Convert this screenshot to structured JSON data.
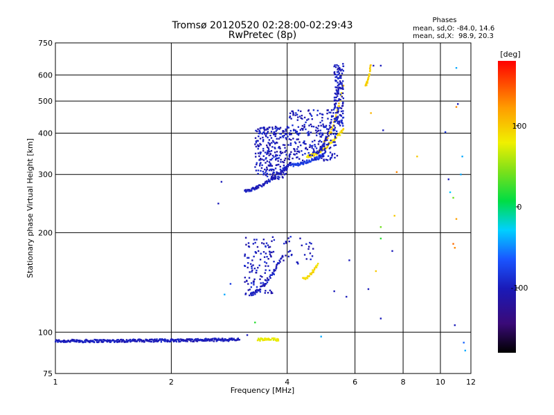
{
  "chart_data": {
    "type": "scatter",
    "title": "Tromsø 20120520 02:28:00-02:29:43",
    "subtitle": "RwPretec (8p)",
    "xlabel": "Frequency [MHz]",
    "ylabel": "Stationary phase Virtual Height [km]",
    "x_scale": "log",
    "y_scale": "log",
    "xlim": [
      1,
      12
    ],
    "ylim": [
      75,
      750
    ],
    "xticks": [
      1,
      2,
      4,
      6,
      8,
      10,
      12
    ],
    "yticks": [
      75,
      100,
      200,
      300,
      400,
      500,
      600,
      750
    ],
    "grid": true,
    "phase_stats": {
      "heading": "Phases",
      "line1": "mean, sd,O: -84.0, 14.6",
      "line2": "mean, sd,X:  98.9, 20.3"
    },
    "colorbar": {
      "label": "[deg]",
      "range": [
        -180,
        180
      ],
      "ticks": [
        100,
        0,
        -100
      ]
    },
    "traces": [
      {
        "x_start": 1.0,
        "x_end": 3.0,
        "y_start": 94,
        "y_end": 95,
        "phase": -100
      },
      {
        "x_start": 3.35,
        "x_end": 3.8,
        "y_start": 95,
        "y_end": 95,
        "phase": 80
      },
      {
        "x_start": 3.1,
        "x_end": 4.1,
        "y_start": 268,
        "y_end": 325,
        "phase": -100
      },
      {
        "x_start": 4.1,
        "x_end": 5.0,
        "y_start": 320,
        "y_end": 345,
        "phase": -80
      },
      {
        "x_start": 4.5,
        "x_end": 5.6,
        "y_start": 340,
        "y_end": 410,
        "phase": 90
      },
      {
        "x_start": 5.0,
        "x_end": 5.6,
        "y_start": 380,
        "y_end": 560,
        "phase": 100
      },
      {
        "x_start": 4.8,
        "x_end": 5.6,
        "y_start": 350,
        "y_end": 650,
        "phase": -100
      },
      {
        "x_start": 6.4,
        "x_end": 6.6,
        "y_start": 560,
        "y_end": 640,
        "phase": 95
      },
      {
        "x_start": 3.2,
        "x_end": 3.9,
        "y_start": 130,
        "y_end": 170,
        "phase": -100
      },
      {
        "x_start": 4.4,
        "x_end": 4.8,
        "y_start": 145,
        "y_end": 160,
        "phase": 90
      }
    ],
    "clusters": [
      {
        "x_min": 3.3,
        "x_max": 4.0,
        "y_min": 290,
        "y_max": 420,
        "count": 260,
        "phase": -100
      },
      {
        "x_min": 4.0,
        "x_max": 5.4,
        "y_min": 330,
        "y_max": 470,
        "count": 260,
        "phase": -100
      },
      {
        "x_min": 3.1,
        "x_max": 3.7,
        "y_min": 130,
        "y_max": 195,
        "count": 110,
        "phase": -100
      },
      {
        "x_min": 3.9,
        "x_max": 4.7,
        "y_min": 160,
        "y_max": 195,
        "count": 30,
        "phase": -100
      },
      {
        "x_min": 5.3,
        "x_max": 5.6,
        "y_min": 420,
        "y_max": 650,
        "count": 120,
        "phase": -100
      }
    ],
    "outliers": [
      {
        "x": 2.65,
        "y": 245,
        "phase": -100
      },
      {
        "x": 2.7,
        "y": 285,
        "phase": -100
      },
      {
        "x": 2.75,
        "y": 130,
        "phase": -40
      },
      {
        "x": 2.85,
        "y": 140,
        "phase": -80
      },
      {
        "x": 3.3,
        "y": 107,
        "phase": 20
      },
      {
        "x": 3.15,
        "y": 98,
        "phase": -100
      },
      {
        "x": 4.9,
        "y": 97,
        "phase": -40
      },
      {
        "x": 5.3,
        "y": 133,
        "phase": -100
      },
      {
        "x": 5.7,
        "y": 128,
        "phase": -100
      },
      {
        "x": 5.8,
        "y": 165,
        "phase": -100
      },
      {
        "x": 6.5,
        "y": 135,
        "phase": -100
      },
      {
        "x": 6.8,
        "y": 153,
        "phase": 100
      },
      {
        "x": 7.0,
        "y": 110,
        "phase": -100
      },
      {
        "x": 7.0,
        "y": 208,
        "phase": 40
      },
      {
        "x": 7.0,
        "y": 192,
        "phase": 20
      },
      {
        "x": 7.5,
        "y": 176,
        "phase": -100
      },
      {
        "x": 7.6,
        "y": 225,
        "phase": 100
      },
      {
        "x": 7.7,
        "y": 305,
        "phase": 130
      },
      {
        "x": 7.1,
        "y": 408,
        "phase": -100
      },
      {
        "x": 7.0,
        "y": 640,
        "phase": -100
      },
      {
        "x": 6.7,
        "y": 640,
        "phase": -100
      },
      {
        "x": 6.6,
        "y": 460,
        "phase": 110
      },
      {
        "x": 8.7,
        "y": 340,
        "phase": 100
      },
      {
        "x": 10.3,
        "y": 403,
        "phase": -80
      },
      {
        "x": 10.5,
        "y": 290,
        "phase": -100
      },
      {
        "x": 10.6,
        "y": 265,
        "phase": -30
      },
      {
        "x": 10.8,
        "y": 255,
        "phase": 40
      },
      {
        "x": 10.8,
        "y": 185,
        "phase": 140
      },
      {
        "x": 10.9,
        "y": 180,
        "phase": 130
      },
      {
        "x": 10.9,
        "y": 105,
        "phase": -100
      },
      {
        "x": 11.0,
        "y": 220,
        "phase": 120
      },
      {
        "x": 11.0,
        "y": 480,
        "phase": 130
      },
      {
        "x": 11.0,
        "y": 630,
        "phase": -40
      },
      {
        "x": 11.1,
        "y": 490,
        "phase": -100
      },
      {
        "x": 11.3,
        "y": 300,
        "phase": -40
      },
      {
        "x": 11.4,
        "y": 340,
        "phase": -40
      },
      {
        "x": 11.5,
        "y": 93,
        "phase": -60
      },
      {
        "x": 11.6,
        "y": 88,
        "phase": -40
      }
    ]
  }
}
